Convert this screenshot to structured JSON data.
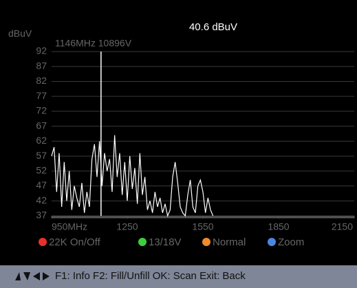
{
  "reading": "40.6 dBuV",
  "chart_data": {
    "type": "line",
    "y_label": "dBuV",
    "cursor": {
      "label": "1146MHz 10896V",
      "x": 1146
    },
    "xlim": [
      950,
      2150
    ],
    "xticks": [
      {
        "value": 950,
        "label": "950MHz"
      },
      1250,
      1550,
      1850,
      2150
    ],
    "ylim": [
      37,
      92
    ],
    "yticks": [
      37,
      42,
      47,
      52,
      57,
      62,
      67,
      72,
      77,
      82,
      87,
      92
    ],
    "grid": true,
    "series": [
      {
        "color": "#ffffff",
        "x": [
          950,
          960,
          970,
          980,
          990,
          1000,
          1010,
          1020,
          1030,
          1040,
          1050,
          1060,
          1070,
          1080,
          1090,
          1100,
          1110,
          1120,
          1130,
          1140,
          1150,
          1160,
          1170,
          1180,
          1190,
          1200,
          1210,
          1220,
          1230,
          1240,
          1250,
          1260,
          1270,
          1280,
          1290,
          1300,
          1310,
          1320,
          1330,
          1340,
          1350,
          1360,
          1370,
          1380,
          1390,
          1400,
          1410,
          1420,
          1430,
          1440,
          1450,
          1460,
          1470,
          1480,
          1490,
          1500,
          1510,
          1520,
          1530,
          1540,
          1550,
          1560,
          1570,
          1580,
          1590
        ],
        "values": [
          57,
          60,
          45,
          58,
          40,
          55,
          42,
          52,
          39,
          47,
          43,
          40,
          48,
          38,
          45,
          40,
          56,
          61,
          50,
          62,
          47,
          58,
          52,
          56,
          45,
          64,
          50,
          58,
          44,
          55,
          42,
          57,
          46,
          53,
          41,
          58,
          44,
          50,
          39,
          42,
          38,
          45,
          40,
          43,
          38,
          41,
          37,
          39,
          50,
          55,
          48,
          40,
          38,
          37,
          44,
          49,
          40,
          38,
          47,
          49,
          45,
          38,
          43,
          39,
          37
        ]
      }
    ]
  },
  "buttons": [
    {
      "label": "22K On/Off",
      "color": "#e8302a"
    },
    {
      "label": "13/18V",
      "color": "#3ccf3a"
    },
    {
      "label": "Normal",
      "color": "#f08a2a"
    },
    {
      "label": "Zoom",
      "color": "#4a86e0"
    }
  ],
  "footer": "F1: Info  F2: Fill/Unfill  OK: Scan  Exit: Back"
}
